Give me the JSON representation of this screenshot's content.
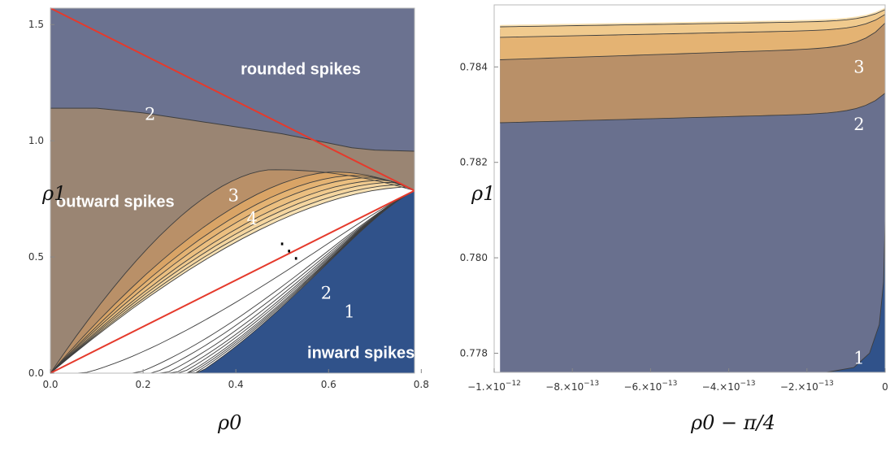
{
  "colors": {
    "inward": "#30528a",
    "c1_2": "#69708e",
    "rounded": "#6b7290",
    "outward": "#9a8573",
    "band3": "#b99068",
    "band4": "#d9a466",
    "band5": "#e4b373",
    "band6": "#ebbf80",
    "band7": "#f0ca8e",
    "band8": "#f4d59f",
    "band9": "#f7e0b2",
    "band10": "#f9e9c6",
    "center": "#ffffff",
    "red_line": "#e53a2c",
    "frame": "#b9b9b9",
    "contour_line": "#3e3e3e"
  },
  "chart_data": [
    {
      "type": "heatmap",
      "title": "",
      "xlabel": "ρ0",
      "ylabel": "ρ1",
      "xlim": [
        0,
        0.785398
      ],
      "ylim": [
        0,
        1.5708
      ],
      "xticks": [
        "0.0",
        "0.2",
        "0.4",
        "0.6",
        "0.8"
      ],
      "xtick_values": [
        0,
        0.2,
        0.4,
        0.6,
        0.8
      ],
      "yticks": [
        "0.0",
        "0.5",
        "1.0",
        "1.5"
      ],
      "ytick_values": [
        0,
        0.5,
        1.0,
        1.5
      ],
      "region_labels": [
        {
          "text": "rounded spikes",
          "x": 0.54,
          "y": 1.31
        },
        {
          "text": "outward spikes",
          "x": 0.14,
          "y": 0.74
        },
        {
          "text": "inward spikes",
          "x": 0.67,
          "y": 0.09
        }
      ],
      "contour_labels": [
        {
          "text": "2",
          "x": 0.215,
          "y": 1.115
        },
        {
          "text": "3",
          "x": 0.395,
          "y": 0.765
        },
        {
          "text": "4",
          "x": 0.435,
          "y": 0.665
        },
        {
          "text": "2",
          "x": 0.595,
          "y": 0.345
        },
        {
          "text": "1",
          "x": 0.645,
          "y": 0.265
        }
      ],
      "ellipsis": "⋱",
      "ellipsis_at": {
        "x": 0.515,
        "y": 0.525
      },
      "contour_2_upper": [
        [
          0,
          1.14
        ],
        [
          0.1,
          1.14
        ],
        [
          0.2,
          1.12
        ],
        [
          0.3,
          1.09
        ],
        [
          0.4,
          1.06
        ],
        [
          0.5,
          1.03
        ],
        [
          0.55,
          1.01
        ],
        [
          0.6,
          0.99
        ],
        [
          0.65,
          0.97
        ],
        [
          0.7,
          0.96
        ],
        [
          0.785,
          0.955
        ]
      ],
      "red_lines": [
        {
          "from": [
            0,
            1.5708
          ],
          "to": [
            0.785398,
            0.785398
          ]
        },
        {
          "from": [
            0,
            0
          ],
          "to": [
            0.785398,
            0.785398
          ]
        }
      ],
      "upper_contours": [
        {
          "level": 3,
          "peak": [
            0.47,
            0.875
          ]
        },
        {
          "level": 4,
          "peak": [
            0.6,
            0.865
          ]
        },
        {
          "level": 5,
          "peak": [
            0.64,
            0.85
          ]
        },
        {
          "level": 6,
          "peak": [
            0.67,
            0.84
          ]
        },
        {
          "level": 7,
          "peak": [
            0.7,
            0.83
          ]
        },
        {
          "level": 8,
          "peak": [
            0.72,
            0.82
          ]
        },
        {
          "level": 9,
          "peak": [
            0.74,
            0.81
          ]
        },
        {
          "level": 10,
          "peak": [
            0.755,
            0.8
          ]
        }
      ],
      "lower_contours": [
        {
          "level": 1,
          "sag": 0.11
        },
        {
          "level": 2,
          "sag": 0.195
        },
        {
          "level": 3,
          "sag": 0.225
        },
        {
          "level": 4,
          "sag": 0.25
        },
        {
          "level": 5,
          "sag": 0.27
        },
        {
          "level": 6,
          "sag": 0.285
        },
        {
          "level": 7,
          "sag": 0.3
        },
        {
          "level": 8,
          "sag": 0.31
        },
        {
          "level": 9,
          "sag": 0.32
        },
        {
          "level": 10,
          "sag": 0.33
        }
      ]
    },
    {
      "type": "heatmap",
      "title": "",
      "xlabel": "ρ0 − π/4",
      "ylabel": "ρ1",
      "xlim": [
        -1e-12,
        0
      ],
      "ylim": [
        0.7776,
        0.7853
      ],
      "xticks": [
        "−1.×10",
        "−8.×10",
        "−6.×10",
        "−4.×10",
        "−2.×10",
        "0"
      ],
      "xtick_exponents": [
        "−12",
        "−13",
        "−13",
        "−13",
        "−13",
        ""
      ],
      "xtick_values": [
        -1e-12,
        -8e-13,
        -6e-13,
        -4e-13,
        -2e-13,
        0
      ],
      "yticks": [
        "0.778",
        "0.780",
        "0.782",
        "0.784"
      ],
      "ytick_values": [
        0.778,
        0.78,
        0.782,
        0.784
      ],
      "contour_labels": [
        {
          "text": "3",
          "x": -5e-14,
          "y": 0.784
        },
        {
          "text": "2",
          "x": -5e-14,
          "y": 0.7828
        },
        {
          "text": "1",
          "x": -5e-14,
          "y": 0.7779
        }
      ],
      "levels_from_bottom_left": [
        {
          "level": 2,
          "y_at_left": 0.78283,
          "y_at_right": 0.78345
        },
        {
          "level": 3,
          "y_at_left": 0.78415,
          "y_at_right": 0.78492
        },
        {
          "level": 4,
          "y_at_left": 0.78462,
          "y_at_right": 0.7851
        },
        {
          "level": 5,
          "y_at_left": 0.78484,
          "y_at_right": 0.7852
        }
      ],
      "contour_1": [
        [
          -1.5e-13,
          0.7776
        ],
        [
          -8e-14,
          0.7777
        ],
        [
          -4e-14,
          0.778
        ],
        [
          -1.5e-14,
          0.7786
        ],
        [
          -4e-15,
          0.7795
        ],
        [
          0,
          0.7808
        ]
      ]
    }
  ]
}
